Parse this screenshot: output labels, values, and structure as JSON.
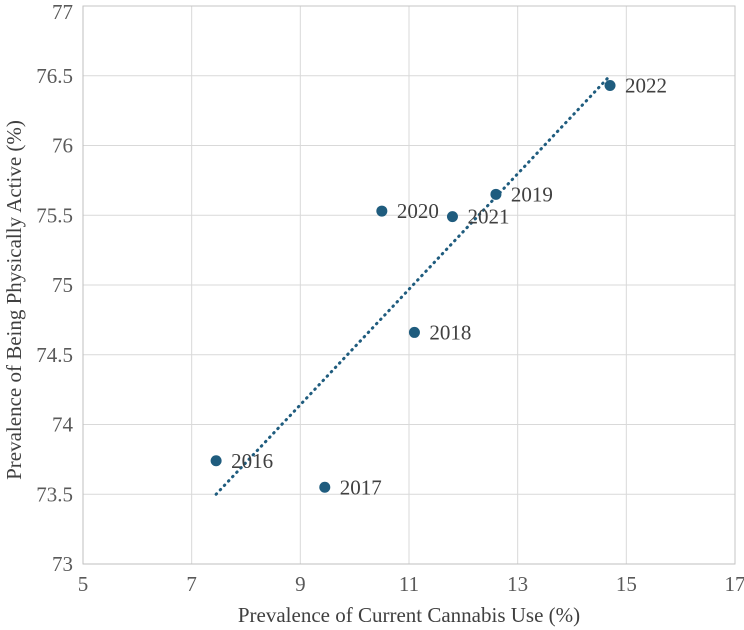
{
  "chart_data": {
    "type": "scatter",
    "title": "",
    "xlabel": "Prevalence of Current Cannabis Use (%)",
    "ylabel": "Prevalence of Being Physically Active (%)",
    "xlim": [
      5,
      17
    ],
    "ylim": [
      73,
      77
    ],
    "x_ticks": [
      5,
      7,
      9,
      11,
      13,
      15,
      17
    ],
    "y_ticks": [
      73,
      73.5,
      74,
      74.5,
      75,
      75.5,
      76,
      76.5,
      77
    ],
    "y_tick_labels": [
      "73",
      "73.5",
      "74",
      "74.5",
      "75",
      "75.5",
      "76",
      "76.5",
      "77"
    ],
    "grid": true,
    "legend": "none",
    "points": [
      {
        "label": "2016",
        "x": 7.45,
        "y": 73.74
      },
      {
        "label": "2017",
        "x": 9.45,
        "y": 73.55
      },
      {
        "label": "2018",
        "x": 11.1,
        "y": 74.66
      },
      {
        "label": "2019",
        "x": 12.6,
        "y": 75.65
      },
      {
        "label": "2020",
        "x": 10.5,
        "y": 75.53
      },
      {
        "label": "2021",
        "x": 11.8,
        "y": 75.49
      },
      {
        "label": "2022",
        "x": 14.7,
        "y": 76.43
      }
    ],
    "trendline": {
      "style": "dotted",
      "x1": 7.45,
      "y1": 73.5,
      "x2": 14.65,
      "y2": 76.48
    },
    "colors": {
      "marker": "#1f5c7e",
      "trendline": "#1f5c7e",
      "grid": "#d9d9d9",
      "border": "#c6c6c6",
      "axis_line": "#bfbfbf",
      "tick_text": "#595959",
      "axis_title_text": "#404040",
      "point_label_text": "#404040",
      "background": "#ffffff"
    }
  }
}
